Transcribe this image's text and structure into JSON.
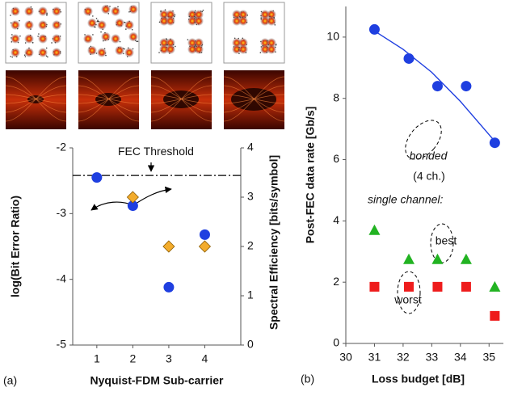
{
  "chart_data": [
    {
      "type": "scatter",
      "panel_label": "(a)",
      "xlabel": "Nyquist-FDM Sub-carrier",
      "ylabel": "log(Bit Error Ratio)",
      "y2label": "Spectral Efficiency [bits/symbol]",
      "xlim": [
        0.33,
        5
      ],
      "xticks": [
        1,
        2,
        3,
        4
      ],
      "ylim": [
        -5,
        -2
      ],
      "yticks": [
        -5,
        -4,
        -3,
        -2
      ],
      "y2lim": [
        0,
        4
      ],
      "y2ticks": [
        0,
        1,
        2,
        3,
        4
      ],
      "hline": {
        "value": -2.42,
        "label": "FEC Threshold"
      },
      "series": [
        {
          "marker": "circle",
          "color": "#1f3fe0",
          "x": [
            1,
            2,
            3,
            4
          ],
          "values": [
            -2.45,
            -2.88,
            -4.12,
            -3.32
          ]
        },
        {
          "marker": "diamond",
          "color": "#f3ac2c",
          "axis": "y2",
          "x": [
            2,
            3,
            4
          ],
          "values": [
            3.0,
            2.0,
            2.0
          ]
        }
      ]
    },
    {
      "type": "scatter",
      "panel_label": "(b)",
      "xlabel": "Loss budget [dB]",
      "ylabel": "Post-FEC data rate [Gb/s]",
      "xlim": [
        30,
        35.5
      ],
      "xticks": [
        30,
        31,
        32,
        33,
        34,
        35
      ],
      "ylim": [
        0,
        11
      ],
      "yticks": [
        0,
        2,
        4,
        6,
        8,
        10
      ],
      "annotations": [
        "bonded",
        "(4 ch.)",
        "single channel:",
        "best",
        "worst"
      ],
      "fit": {
        "color": "#1f3fe0",
        "x": [
          31,
          32,
          33,
          34,
          35.2
        ],
        "values": [
          10.2,
          9.6,
          8.85,
          7.9,
          6.6
        ]
      },
      "series": [
        {
          "marker": "circle",
          "color": "#1f3fe0",
          "x": [
            31,
            32.2,
            33.2,
            34.2,
            35.2
          ],
          "values": [
            10.25,
            9.3,
            8.4,
            8.4,
            6.55
          ]
        },
        {
          "marker": "triangle",
          "color": "#22b322",
          "x": [
            31,
            32.2,
            33.2,
            34.2,
            35.2
          ],
          "values": [
            3.7,
            2.75,
            2.75,
            2.75,
            1.85
          ]
        },
        {
          "marker": "square",
          "color": "#ee1c1c",
          "x": [
            31,
            32.2,
            33.2,
            34.2,
            35.2
          ],
          "values": [
            1.85,
            1.85,
            1.85,
            1.85,
            0.9
          ]
        }
      ]
    }
  ]
}
